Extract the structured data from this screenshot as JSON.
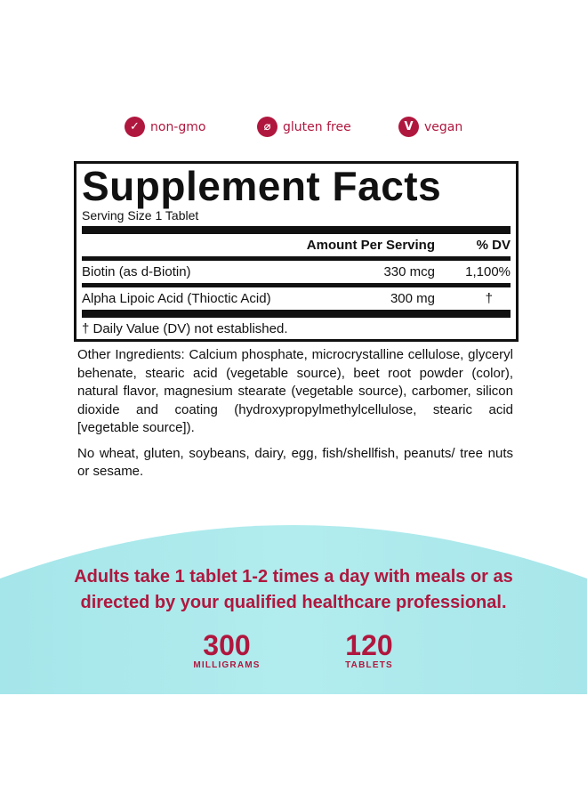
{
  "badges": [
    {
      "label": "non-gmo",
      "icon": "check-icon"
    },
    {
      "label": "gluten free",
      "icon": "wheat-icon"
    },
    {
      "label": "vegan",
      "icon": "v-icon"
    }
  ],
  "facts": {
    "title": "Supplement Facts",
    "serving": "Serving Size 1 Tablet",
    "col_amount": "Amount Per Serving",
    "col_dv": "% DV",
    "rows": [
      {
        "name": "Biotin (as d-Biotin)",
        "amount": "330 mcg",
        "dv": "1,100%"
      },
      {
        "name": "Alpha Lipoic Acid (Thioctic Acid)",
        "amount": "300 mg",
        "dv": "†"
      }
    ],
    "footnote": "† Daily Value (DV) not established."
  },
  "other_ingredients": "Other Ingredients: Calcium phosphate, microcrystalline cellulose, glyceryl behenate, stearic acid (vegetable source), beet root powder (color), natural flavor, magnesium stearate (vegetable source), carbomer, silicon dioxide and coating (hydroxypropylmethylcellulose, stearic acid [vegetable source]).",
  "allergen": "No wheat, gluten, soybeans, dairy, egg, fish/shellfish, peanuts/ tree nuts or sesame.",
  "directions": {
    "line1": "Adults take 1 tablet 1-2 times a day with meals or as",
    "line2": "directed by your qualified healthcare professional."
  },
  "stats": [
    {
      "value": "300",
      "unit": "MILLIGRAMS"
    },
    {
      "value": "120",
      "unit": "TABLETS"
    }
  ],
  "colors": {
    "accent": "#b0173e",
    "teal": "#a9e8eb"
  }
}
